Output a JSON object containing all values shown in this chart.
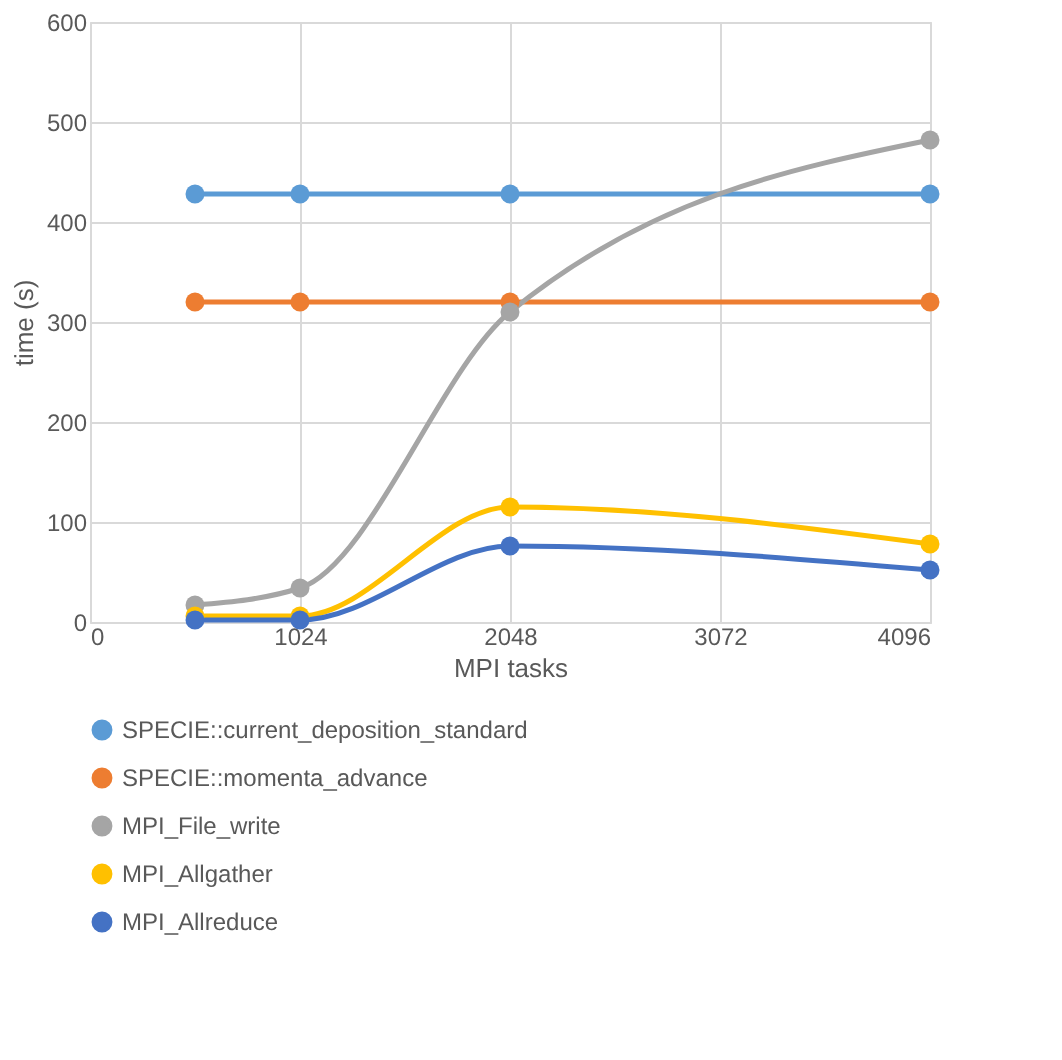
{
  "chart_data": {
    "type": "line",
    "xlabel": "MPI tasks",
    "ylabel": "time (s)",
    "x": [
      512,
      1024,
      2048,
      4096
    ],
    "series": [
      {
        "name": "SPECIE::current_deposition_standard",
        "color": "#5b9bd5",
        "values": [
          428,
          428,
          428,
          428
        ]
      },
      {
        "name": "SPECIE::momenta_advance",
        "color": "#ed7d31",
        "values": [
          320,
          320,
          320,
          320
        ]
      },
      {
        "name": "MPI_File_write",
        "color": "#a5a5a5",
        "values": [
          17,
          34,
          310,
          482
        ]
      },
      {
        "name": "MPI_Allgather",
        "color": "#ffc000",
        "values": [
          6,
          6,
          115,
          78
        ]
      },
      {
        "name": "MPI_Allreduce",
        "color": "#4472c4",
        "values": [
          2,
          2,
          76,
          52
        ]
      }
    ],
    "xlim": [
      0,
      4096
    ],
    "xticks": [
      0,
      1024,
      2048,
      3072,
      4096
    ],
    "ylim": [
      0,
      600
    ],
    "yticks": [
      0,
      100,
      200,
      300,
      400,
      500,
      600
    ],
    "grid": true,
    "legend": "bottom",
    "marker": "circle",
    "line_style": "solid"
  }
}
